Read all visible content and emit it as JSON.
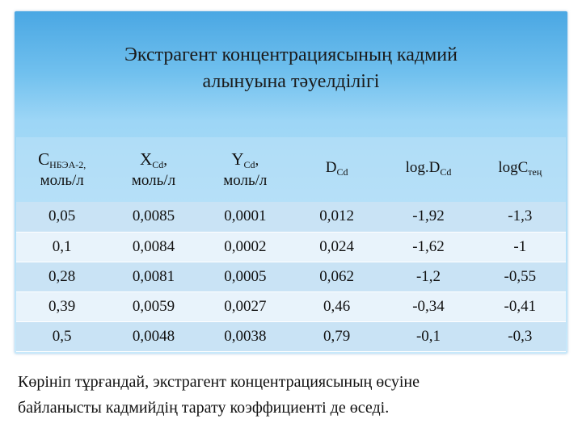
{
  "slide": {
    "title_line1": "Экстрагент концентрациясының кадмий",
    "title_line2": "алынуына тәуелділігі",
    "footer_line1": "Көрініп тұрғандай, экстрагент концентрациясының өсуіне",
    "footer_line2": "байланысты кадмийдің тарату коэффициенті де өседі."
  },
  "table": {
    "headers": [
      {
        "main": "C",
        "sub": "НБЭА-2,",
        "unit": "моль/л"
      },
      {
        "main": "X",
        "sub": "Cd",
        "suffix": ",",
        "unit": "моль/л"
      },
      {
        "main": "Y",
        "sub": "Cd",
        "suffix": ",",
        "unit": "моль/л"
      },
      {
        "main": "D",
        "sub": "Cd",
        "unit": ""
      },
      {
        "main": "log.D",
        "sub": "Cd",
        "unit": ""
      },
      {
        "main": "logC",
        "sub": "тең",
        "unit": ""
      }
    ],
    "rows": [
      [
        "0,05",
        "0,0085",
        "0,0001",
        "0,012",
        "-1,92",
        "-1,3"
      ],
      [
        "0,1",
        "0,0084",
        "0,0002",
        "0,024",
        "-1,62",
        "-1"
      ],
      [
        "0,28",
        "0,0081",
        "0,0005",
        "0,062",
        "-1,2",
        "-0,55"
      ],
      [
        "0,39",
        "0,0059",
        "0,0027",
        "0,46",
        "-0,34",
        "-0,41"
      ],
      [
        "0,5",
        "0,0048",
        "0,0038",
        "0,79",
        "-0,1",
        "-0,3"
      ]
    ]
  }
}
